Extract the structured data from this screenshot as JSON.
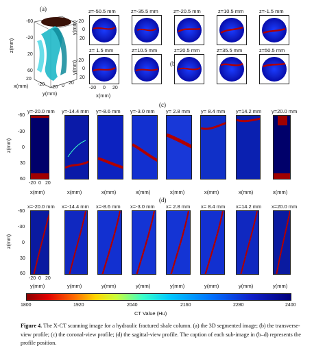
{
  "panels": {
    "a": "(a)",
    "b": "(b)",
    "c": "(c)",
    "d": "(d)"
  },
  "panel_a": {
    "z_label": "z(mm)",
    "x_label": "x(mm)",
    "y_label": "y(mm)",
    "z_ticks": [
      "-60",
      "-20",
      "20",
      "60"
    ],
    "x_ticks": [
      "20",
      "-20"
    ],
    "y_ticks": [
      "-20",
      "0",
      "20"
    ]
  },
  "panel_b": {
    "titles_row1": [
      "z=-50.5 mm",
      "z=-35.5 mm",
      "z=-20.5 mm",
      "z=10.5 mm",
      "z=-1.5 mm"
    ],
    "titles_row2": [
      "z= 1.5 mm",
      "z=10.5 mm",
      "z=20.5 mm",
      "z=35.5 mm",
      "z=50.5 mm"
    ],
    "y_label": "y(mm)",
    "x_label": "x(mm)",
    "y_ticks": [
      "-20",
      "0",
      "20"
    ],
    "x_ticks": [
      "-20",
      "0",
      "20"
    ]
  },
  "panel_c": {
    "titles": [
      "y=-20.0 mm",
      "y=-14.4 mm",
      "y=-8.6 mm",
      "y=-3.0 mm",
      "y= 2.8 mm",
      "y= 8.4 mm",
      "y=14.2 mm",
      "y=20.0 mm"
    ],
    "z_label": "z(mm)",
    "x_label": "x(mm)",
    "z_ticks": [
      "-60",
      "-30",
      "0",
      "30",
      "60"
    ],
    "x_ticks": [
      "-20",
      "0",
      "20"
    ]
  },
  "panel_d": {
    "titles": [
      "x=-20.0 mm",
      "x=-14.4 mm",
      "x=-8.6 mm",
      "x=-3.0 mm",
      "x= 2.8 mm",
      "x= 8.4 mm",
      "x=14.2 mm",
      "x=20.0 mm"
    ],
    "z_label": "z(mm)",
    "y_label": "y(mm)",
    "z_ticks": [
      "-60",
      "-30",
      "0",
      "30",
      "60"
    ],
    "y_ticks": [
      "-20",
      "0",
      "20"
    ]
  },
  "colorbar": {
    "ticks": [
      "1800",
      "1920",
      "2040",
      "2160",
      "2280",
      "2400"
    ],
    "label": "CT Value (Hu)"
  },
  "caption": {
    "label": "Figure 4.",
    "text": " The X-CT scanning image for a hydraulic fractured shale column. (a) the 3D segmented image; (b) the transverse-view profile; (c) the coronal-view profile; (d) the sagittal-view profile. The caption of each sub-image in (b–d) represents the profile position."
  }
}
